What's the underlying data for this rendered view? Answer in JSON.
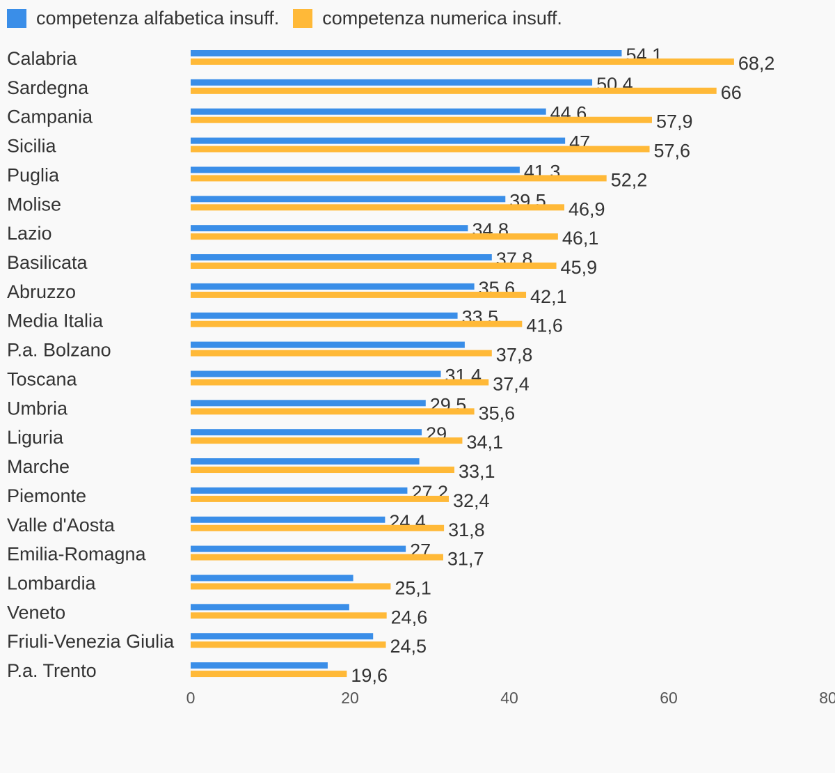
{
  "chart_data": {
    "type": "bar",
    "orientation": "horizontal",
    "xlim": [
      0,
      80
    ],
    "ticks": [
      "0",
      "20",
      "40",
      "60",
      "80"
    ],
    "grid": false,
    "legend_position": "top-left",
    "categories": [
      "Calabria",
      "Sardegna",
      "Campania",
      "Sicilia",
      "Puglia",
      "Molise",
      "Lazio",
      "Basilicata",
      "Abruzzo",
      "Media Italia",
      "P.a. Bolzano",
      "Toscana",
      "Umbria",
      "Liguria",
      "Marche",
      "Piemonte",
      "Valle d'Aosta",
      "Emilia-Romagna",
      "Lombardia",
      "Veneto",
      "Friuli-Venezia Giulia",
      "P.a. Trento"
    ],
    "series": [
      {
        "name": "competenza alfabetica insuff.",
        "color": "#3a8ee8",
        "values": [
          54.1,
          50.4,
          44.6,
          47,
          41.3,
          39.5,
          34.8,
          37.8,
          35.6,
          33.5,
          34.4,
          31.4,
          29.5,
          29,
          28.7,
          27.2,
          24.4,
          27,
          20.4,
          19.9,
          22.9,
          17.2
        ],
        "labels": [
          "54,1",
          "50,4",
          "44,6",
          "47",
          "41,3",
          "39,5",
          "34,8",
          "37,8",
          "35,6",
          "33,5",
          "",
          "31,4",
          "29,5",
          "29",
          "",
          "27,2",
          "24,4",
          "27",
          "",
          "",
          "",
          ""
        ]
      },
      {
        "name": "competenza numerica insuff.",
        "color": "#ffb938",
        "values": [
          68.2,
          66,
          57.9,
          57.6,
          52.2,
          46.9,
          46.1,
          45.9,
          42.1,
          41.6,
          37.8,
          37.4,
          35.6,
          34.1,
          33.1,
          32.4,
          31.8,
          31.7,
          25.1,
          24.6,
          24.5,
          19.6
        ],
        "labels": [
          "68,2",
          "66",
          "57,9",
          "57,6",
          "52,2",
          "46,9",
          "46,1",
          "45,9",
          "42,1",
          "41,6",
          "37,8",
          "37,4",
          "35,6",
          "34,1",
          "33,1",
          "32,4",
          "31,8",
          "31,7",
          "25,1",
          "24,6",
          "24,5",
          "19,6"
        ]
      }
    ]
  }
}
